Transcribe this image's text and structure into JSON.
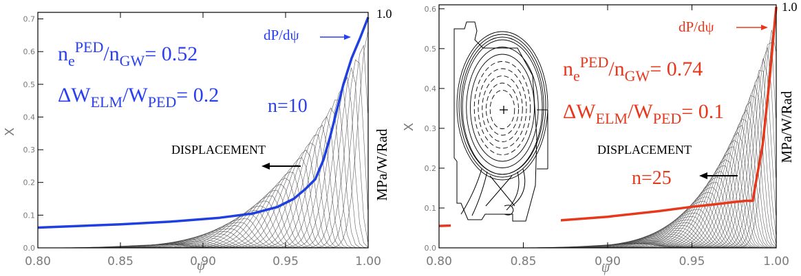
{
  "chart_data": [
    {
      "type": "line",
      "xlabel": "ψ",
      "ylabel": "X",
      "right_axis_label": "MPa/W/Rad",
      "right_top_label": "1.0",
      "xlim": [
        0.8,
        1.0
      ],
      "ylim": [
        0.0,
        0.72
      ],
      "x_ticks": [
        "0.80",
        "0.85",
        "0.90",
        "0.95",
        "1.00"
      ],
      "y_ticks": [
        "0.0",
        "0.1",
        "0.2",
        "0.3",
        "0.4",
        "0.5",
        "0.6",
        "0.7"
      ],
      "x_tick_values": [
        0.8,
        0.85,
        0.9,
        0.95,
        1.0
      ],
      "y_tick_values": [
        0.0,
        0.1,
        0.2,
        0.3,
        0.4,
        0.5,
        0.6,
        0.7
      ],
      "grid": false,
      "annotations": {
        "density_main": "n",
        "density_sub1": "e",
        "density_sup1": "PED",
        "density_mid": "/n",
        "density_sub2": "GW",
        "density_value": "= 0.52",
        "elm_main": "ΔW",
        "elm_sub1": "ELM",
        "elm_mid": "/W",
        "elm_sub2": "PED",
        "elm_value": "= 0.2",
        "mode_number": "n=10",
        "pressure_gradient": "dP/dψ",
        "displacement": "DISPLACEMENT"
      },
      "series": [
        {
          "name": "dP/dψ",
          "color": "#1f3fe0",
          "x": [
            0.8,
            0.85,
            0.88,
            0.91,
            0.93,
            0.945,
            0.955,
            0.962,
            0.968,
            0.973,
            0.977,
            0.981,
            0.985,
            0.99,
            0.995,
            1.0
          ],
          "y": [
            0.062,
            0.072,
            0.08,
            0.092,
            0.105,
            0.125,
            0.15,
            0.18,
            0.21,
            0.27,
            0.34,
            0.42,
            0.5,
            0.58,
            0.64,
            0.705
          ]
        }
      ],
      "eigenfunctions": {
        "color": "#444444",
        "count": 40,
        "center_start": 0.88,
        "center_end": 1.0,
        "amp_start": 0.01,
        "amp_end": 0.66,
        "y_max": 0.72
      }
    },
    {
      "type": "line",
      "xlabel": "ψ",
      "ylabel": "X",
      "right_axis_label": "MPa/W/Rad",
      "right_top_label": "1.0",
      "xlim": [
        0.8,
        1.0
      ],
      "ylim": [
        0.0,
        0.61
      ],
      "x_ticks": [
        "0.80",
        "0.85",
        "0.90",
        "0.95",
        "1.00"
      ],
      "y_ticks": [
        "0.0",
        "0.1",
        "0.2",
        "0.3",
        "0.4",
        "0.5",
        "0.6"
      ],
      "x_tick_values": [
        0.8,
        0.85,
        0.9,
        0.95,
        1.0
      ],
      "y_tick_values": [
        0.0,
        0.1,
        0.2,
        0.3,
        0.4,
        0.5,
        0.6
      ],
      "grid": false,
      "annotations": {
        "density_main": "n",
        "density_sub1": "e",
        "density_sup1": "PED",
        "density_mid": "/n",
        "density_sub2": "GW",
        "density_value": "= 0.74",
        "elm_main": "ΔW",
        "elm_sub1": "ELM",
        "elm_mid": "/W",
        "elm_sub2": "PED",
        "elm_value": "= 0.1",
        "mode_number": "n=25",
        "pressure_gradient": "dP/dψ",
        "displacement": "DISPLACEMENT"
      },
      "series": [
        {
          "name": "dP/dψ",
          "color": "#e8381c",
          "x": [
            0.8,
            0.85,
            0.9,
            0.93,
            0.95,
            0.965,
            0.975,
            0.982,
            0.986,
            0.992,
            0.996,
            0.999,
            1.0
          ],
          "y": [
            0.055,
            0.062,
            0.078,
            0.092,
            0.103,
            0.11,
            0.115,
            0.118,
            0.118,
            0.26,
            0.42,
            0.56,
            0.605
          ]
        }
      ],
      "eigenfunctions": {
        "color": "#444444",
        "count": 48,
        "center_start": 0.92,
        "center_end": 1.0,
        "amp_start": 0.01,
        "amp_end": 0.58,
        "y_max": 0.61
      }
    }
  ]
}
